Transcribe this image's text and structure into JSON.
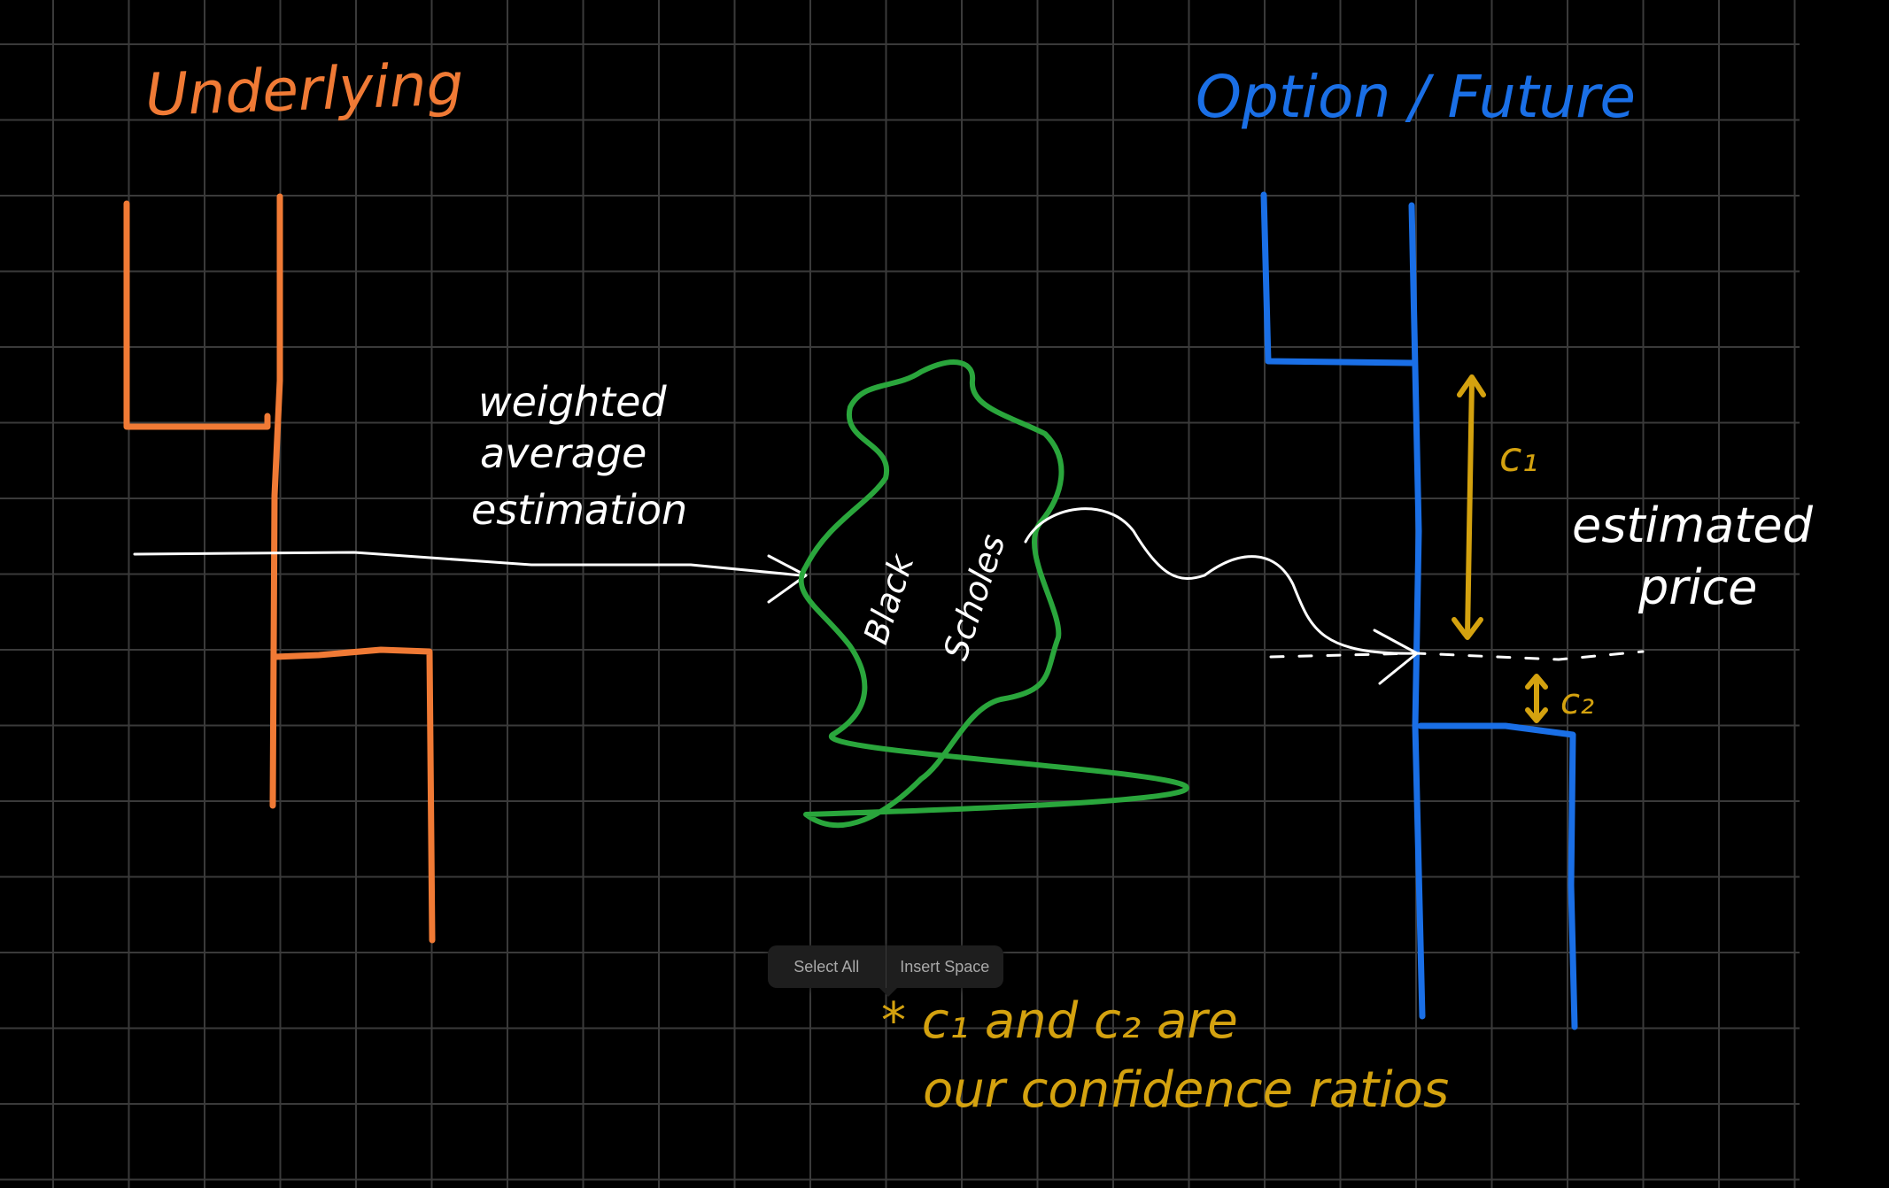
{
  "labels": {
    "underlying": "Underlying",
    "option_future": "Option / Future",
    "weighted_line1": "weighted",
    "weighted_line2": "average",
    "weighted_line3": "estimation",
    "black_line1": "Black",
    "black_line2": "Scholes",
    "estimated_line1": "estimated",
    "estimated_line2": "price",
    "c1": "c₁",
    "c2": "c₂",
    "note_line1": "* c₁ and c₂ are",
    "note_line2": "our confidence ratios"
  },
  "context_menu": {
    "select_all": "Select All",
    "insert_space": "Insert Space"
  },
  "colors": {
    "background": "#000000",
    "grid": "#3a3a3a",
    "underlying": "#f07a35",
    "option": "#1a6fe6",
    "blob": "#2aa63c",
    "annotation": "#d4a20f",
    "ink": "#ffffff"
  }
}
